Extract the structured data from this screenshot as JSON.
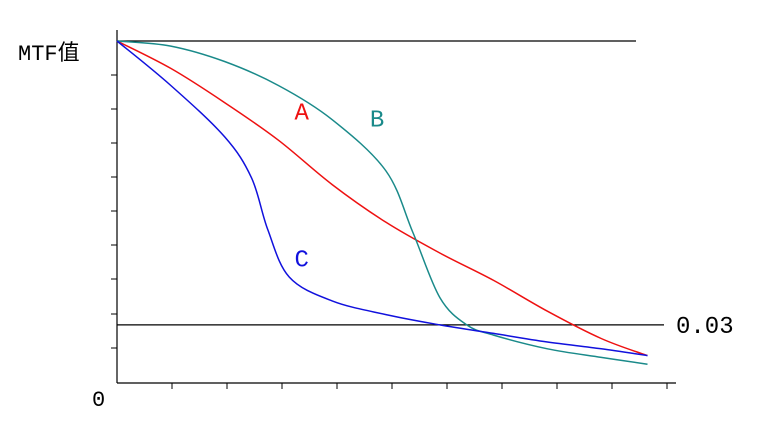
{
  "chart_data": {
    "type": "line",
    "title": "",
    "ylabel": "MTF值",
    "xlabel": "",
    "origin_label": "0",
    "xlim": [
      0,
      1
    ],
    "ylim": [
      0,
      1
    ],
    "grid": false,
    "reference_lines": [
      {
        "label": "",
        "y": 1.0
      },
      {
        "label": "0.03",
        "y": 0.17
      }
    ],
    "series": [
      {
        "name": "A",
        "color": "#ee1111",
        "points": [
          [
            0,
            1.0
          ],
          [
            0.1,
            0.92
          ],
          [
            0.2,
            0.82
          ],
          [
            0.3,
            0.71
          ],
          [
            0.4,
            0.58
          ],
          [
            0.5,
            0.47
          ],
          [
            0.6,
            0.38
          ],
          [
            0.7,
            0.3
          ],
          [
            0.8,
            0.21
          ],
          [
            0.9,
            0.13
          ],
          [
            0.986,
            0.08
          ]
        ]
      },
      {
        "name": "B",
        "color": "#1a8a8a",
        "points": [
          [
            0,
            1.0
          ],
          [
            0.1,
            0.985
          ],
          [
            0.2,
            0.94
          ],
          [
            0.3,
            0.87
          ],
          [
            0.4,
            0.77
          ],
          [
            0.5,
            0.62
          ],
          [
            0.55,
            0.44
          ],
          [
            0.6,
            0.25
          ],
          [
            0.65,
            0.17
          ],
          [
            0.7,
            0.14
          ],
          [
            0.8,
            0.1
          ],
          [
            0.9,
            0.075
          ],
          [
            0.986,
            0.055
          ]
        ]
      },
      {
        "name": "C",
        "color": "#1111dd",
        "points": [
          [
            0,
            1.0
          ],
          [
            0.1,
            0.87
          ],
          [
            0.2,
            0.72
          ],
          [
            0.25,
            0.6
          ],
          [
            0.28,
            0.45
          ],
          [
            0.32,
            0.31
          ],
          [
            0.4,
            0.24
          ],
          [
            0.5,
            0.2
          ],
          [
            0.6,
            0.17
          ],
          [
            0.7,
            0.145
          ],
          [
            0.8,
            0.12
          ],
          [
            0.9,
            0.1
          ],
          [
            0.986,
            0.08
          ]
        ]
      }
    ]
  }
}
